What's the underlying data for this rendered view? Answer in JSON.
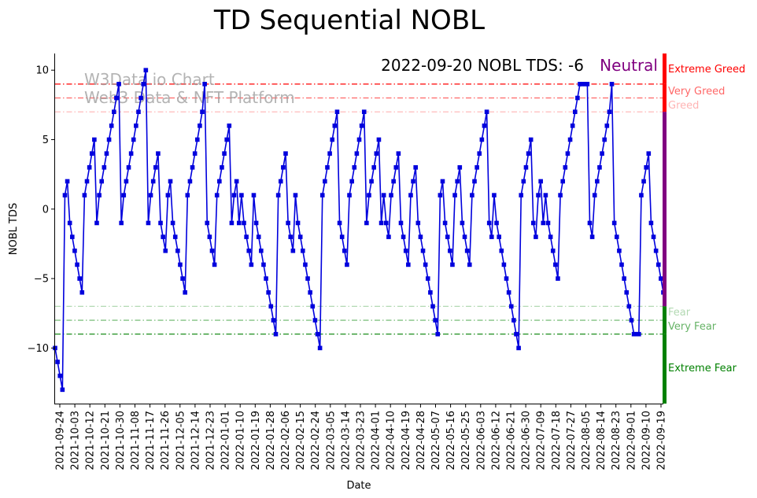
{
  "chart_data": {
    "type": "line",
    "title": "TD Sequential NOBL",
    "xlabel": "Date",
    "ylabel": "NOBL TDS",
    "ylim": [
      -14,
      11.2
    ],
    "yticks": [
      10,
      5,
      0,
      -5,
      -10
    ],
    "annotation": "2022-09-20 NOBL TDS: -6",
    "status": "Neutral",
    "watermark_lines": [
      "W3Data.io Chart",
      "Web3 Data & NFT Platform"
    ],
    "x_tick_labels": [
      "2021-09-24",
      "2021-10-03",
      "2021-10-12",
      "2021-10-21",
      "2021-10-30",
      "2021-11-08",
      "2021-11-17",
      "2021-11-26",
      "2021-12-05",
      "2021-12-14",
      "2021-12-23",
      "2022-01-01",
      "2022-01-10",
      "2022-01-19",
      "2022-01-28",
      "2022-02-06",
      "2022-02-15",
      "2022-02-24",
      "2022-03-05",
      "2022-03-14",
      "2022-03-23",
      "2022-04-01",
      "2022-04-10",
      "2022-04-19",
      "2022-04-28",
      "2022-05-07",
      "2022-05-16",
      "2022-05-25",
      "2022-06-03",
      "2022-06-12",
      "2022-06-21",
      "2022-06-30",
      "2022-07-09",
      "2022-07-18",
      "2022-07-27",
      "2022-08-05",
      "2022-08-14",
      "2022-08-23",
      "2022-09-01",
      "2022-09-10",
      "2022-09-19"
    ],
    "thresholds": [
      {
        "label": "Extreme Greed",
        "value": 9,
        "color": "#ff0000",
        "opacity": 1.0
      },
      {
        "label": "Very Greed",
        "value": 8,
        "color": "#ff0000",
        "opacity": 0.6
      },
      {
        "label": "Greed",
        "value": 7,
        "color": "#ff0000",
        "opacity": 0.3
      },
      {
        "label": "Fear",
        "value": -7,
        "color": "#008000",
        "opacity": 0.3
      },
      {
        "label": "Very Fear",
        "value": -8,
        "color": "#008000",
        "opacity": 0.6
      },
      {
        "label": "Extreme Fear",
        "value": -9,
        "color": "#008000",
        "opacity": 1.0
      }
    ],
    "side_bar": [
      {
        "from": 11.2,
        "to": 9,
        "color": "#ff0000"
      },
      {
        "from": 9,
        "to": 7,
        "color": "#ff0000"
      },
      {
        "from": 7,
        "to": -7,
        "color": "#800080"
      },
      {
        "from": -7,
        "to": -9,
        "color": "#008000"
      },
      {
        "from": -9,
        "to": -14,
        "color": "#008000"
      }
    ],
    "colors": {
      "line": "#0000dd",
      "status": "#800080",
      "watermark": "#999999"
    },
    "series": [
      {
        "name": "NOBL TDS",
        "values": [
          -10,
          -11,
          -12,
          -13,
          1,
          2,
          -1,
          -2,
          -3,
          -4,
          -5,
          -6,
          1,
          2,
          3,
          4,
          5,
          -1,
          1,
          2,
          3,
          4,
          5,
          6,
          7,
          8,
          9,
          -1,
          1,
          2,
          3,
          4,
          5,
          6,
          7,
          8,
          9,
          10,
          -1,
          1,
          2,
          3,
          4,
          -1,
          -2,
          -3,
          1,
          2,
          -1,
          -2,
          -3,
          -4,
          -5,
          -6,
          1,
          2,
          3,
          4,
          5,
          6,
          7,
          9,
          -1,
          -2,
          -3,
          -4,
          1,
          2,
          3,
          4,
          5,
          6,
          -1,
          1,
          2,
          -1,
          1,
          -1,
          -2,
          -3,
          -4,
          1,
          -1,
          -2,
          -3,
          -4,
          -5,
          -6,
          -7,
          -8,
          -9,
          1,
          2,
          3,
          4,
          -1,
          -2,
          -3,
          1,
          -1,
          -2,
          -3,
          -4,
          -5,
          -6,
          -7,
          -8,
          -9,
          -10,
          1,
          2,
          3,
          4,
          5,
          6,
          7,
          -1,
          -2,
          -3,
          -4,
          1,
          2,
          3,
          4,
          5,
          6,
          7,
          -1,
          1,
          2,
          3,
          4,
          5,
          -1,
          1,
          -1,
          -2,
          1,
          2,
          3,
          4,
          -1,
          -2,
          -3,
          -4,
          1,
          2,
          3,
          -1,
          -2,
          -3,
          -4,
          -5,
          -6,
          -7,
          -8,
          -9,
          1,
          2,
          -1,
          -2,
          -3,
          -4,
          1,
          2,
          3,
          -1,
          -2,
          -3,
          -4,
          1,
          2,
          3,
          4,
          5,
          6,
          7,
          -1,
          -2,
          1,
          -1,
          -2,
          -3,
          -4,
          -5,
          -6,
          -7,
          -8,
          -9,
          -10,
          1,
          2,
          3,
          4,
          5,
          -1,
          -2,
          1,
          2,
          -1,
          1,
          -1,
          -2,
          -3,
          -4,
          -5,
          1,
          2,
          3,
          4,
          5,
          6,
          7,
          8,
          9,
          9,
          9,
          9,
          -1,
          -2,
          1,
          2,
          3,
          4,
          5,
          6,
          7,
          9,
          -1,
          -2,
          -3,
          -4,
          -5,
          -6,
          -7,
          -8,
          -9,
          -9,
          -9,
          1,
          2,
          3,
          4,
          -1,
          -2,
          -3,
          -4,
          -5,
          -6
        ]
      }
    ]
  }
}
